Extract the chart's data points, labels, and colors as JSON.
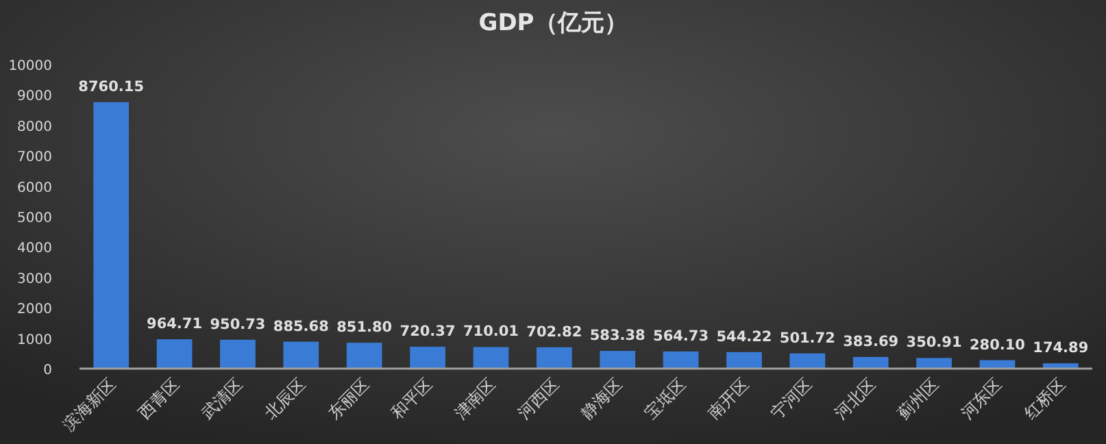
{
  "chart_data": {
    "type": "bar",
    "title": "GDP（亿元）",
    "categories": [
      "滨海新区",
      "西青区",
      "武清区",
      "北辰区",
      "东丽区",
      "和平区",
      "津南区",
      "河西区",
      "静海区",
      "宝坻区",
      "南开区",
      "宁河区",
      "河北区",
      "蓟州区",
      "河东区",
      "红桥区"
    ],
    "values": [
      8760.15,
      964.71,
      950.73,
      885.68,
      851.8,
      720.37,
      710.01,
      702.82,
      583.38,
      564.73,
      544.22,
      501.72,
      383.69,
      350.91,
      280.1,
      174.89
    ],
    "value_labels": [
      "8760.15",
      "964.71",
      "950.73",
      "885.68",
      "851.80",
      "720.37",
      "710.01",
      "702.82",
      "583.38",
      "564.73",
      "544.22",
      "501.72",
      "383.69",
      "350.91",
      "280.10",
      "174.89"
    ],
    "color": "#3a7bd5",
    "ylim": [
      0,
      10000
    ],
    "yticks": [
      0,
      1000,
      2000,
      3000,
      4000,
      5000,
      6000,
      7000,
      8000,
      9000,
      10000
    ]
  }
}
